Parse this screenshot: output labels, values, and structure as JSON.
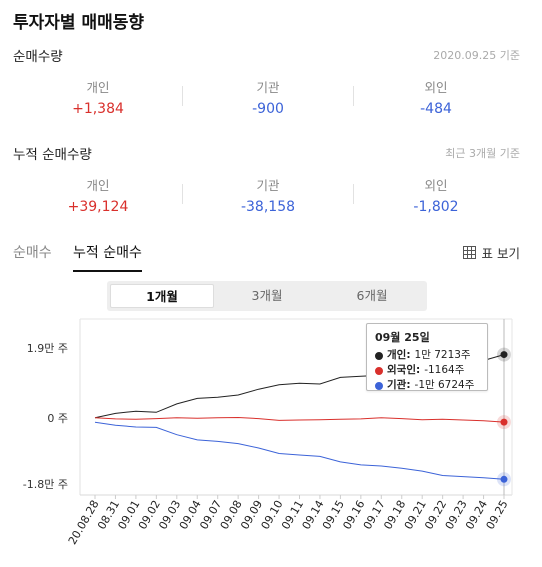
{
  "title": "투자자별 매매동향",
  "daily": {
    "title": "순매수량",
    "date": "2020.09.25 기준",
    "items": [
      {
        "label": "개인",
        "value": "+1,384"
      },
      {
        "label": "기관",
        "value": "-900"
      },
      {
        "label": "외인",
        "value": "-484"
      }
    ]
  },
  "cumulative": {
    "title": "누적 순매수량",
    "basis": "최근 3개월 기준",
    "items": [
      {
        "label": "개인",
        "value": "+39,124"
      },
      {
        "label": "기관",
        "value": "-38,158"
      },
      {
        "label": "외인",
        "value": "-1,802"
      }
    ]
  },
  "tabs": [
    {
      "label": "순매수",
      "active": false
    },
    {
      "label": "누적 순매수",
      "active": true
    }
  ],
  "table_view": {
    "label": "표 보기",
    "icon": "table-icon"
  },
  "periods": [
    {
      "label": "1개월",
      "selected": true
    },
    {
      "label": "3개월",
      "selected": false
    },
    {
      "label": "6개월",
      "selected": false
    }
  ],
  "tooltip": {
    "date": "09월 25일",
    "rows": [
      {
        "name": "개인:",
        "value": "1만 7213주",
        "color": "#222222"
      },
      {
        "name": "외국인:",
        "value": "-1164주",
        "color": "#d9302c"
      },
      {
        "name": "기관:",
        "value": "-1만 6724주",
        "color": "#3c63d8"
      }
    ]
  },
  "colors": {
    "red": "#d9302c",
    "blue": "#3c63d8",
    "black": "#222222"
  },
  "chart_data": {
    "type": "line",
    "x": [
      "20.08.28",
      "08.31",
      "09.01",
      "09.02",
      "09.03",
      "09.04",
      "09.07",
      "09.08",
      "09.09",
      "09.10",
      "09.11",
      "09.14",
      "09.15",
      "09.16",
      "09.17",
      "09.18",
      "09.21",
      "09.22",
      "09.23",
      "09.24",
      "09.25"
    ],
    "ytick_labels": [
      "1.9만 주",
      "0 주",
      "-1.8만 주"
    ],
    "ytick_values": [
      19000,
      0,
      -18000
    ],
    "ylim": [
      -18000,
      19000
    ],
    "series": [
      {
        "name": "개인",
        "color": "#222222",
        "values": [
          0,
          1200,
          1800,
          1500,
          3800,
          5300,
          5600,
          6200,
          7800,
          9000,
          9400,
          9200,
          11000,
          11300,
          11600,
          12500,
          13500,
          15000,
          15300,
          15600,
          17213
        ]
      },
      {
        "name": "외국인",
        "color": "#d9302c",
        "values": [
          0,
          -300,
          -400,
          -200,
          0,
          -100,
          0,
          100,
          -200,
          -700,
          -600,
          -500,
          -400,
          -300,
          0,
          -200,
          -500,
          -400,
          -600,
          -800,
          -1164
        ]
      },
      {
        "name": "기관",
        "color": "#3c63d8",
        "values": [
          -1200,
          -2000,
          -2500,
          -2600,
          -4600,
          -6000,
          -6400,
          -7000,
          -8200,
          -9700,
          -10100,
          -10500,
          -12000,
          -12800,
          -13100,
          -13700,
          -14500,
          -15700,
          -16000,
          -16300,
          -16724
        ]
      }
    ]
  }
}
